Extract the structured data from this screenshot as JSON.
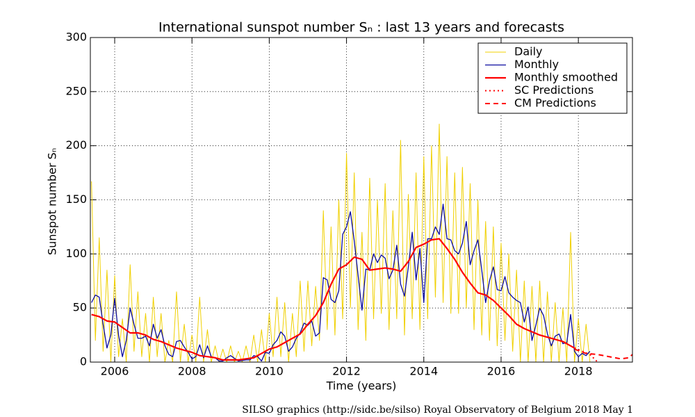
{
  "chart_data": {
    "type": "line",
    "title": "International sunspot number Sₙ : last 13 years and forecasts",
    "x_label": "Time (years)",
    "y_label": "Sunspot number Sₙ",
    "footer": "SILSO graphics (http://sidc.be/silso)  Royal Observatory of Belgium  2018 May 1",
    "xlim": [
      2005.37,
      2019.4
    ],
    "ylim": [
      0,
      300
    ],
    "xticks": [
      2006,
      2008,
      2010,
      2012,
      2014,
      2016,
      2018
    ],
    "yticks": [
      0,
      50,
      100,
      150,
      200,
      250,
      300
    ],
    "grid": true,
    "legend": "upper right",
    "series": [
      {
        "name": "Daily",
        "color": "#f0d000",
        "style": "solid",
        "linewidth": 1,
        "x": [
          2005.4,
          2005.5,
          2005.6,
          2005.7,
          2005.8,
          2005.9,
          2006.0,
          2006.1,
          2006.2,
          2006.3,
          2006.4,
          2006.5,
          2006.6,
          2006.7,
          2006.8,
          2006.9,
          2007.0,
          2007.1,
          2007.2,
          2007.3,
          2007.4,
          2007.5,
          2007.6,
          2007.7,
          2007.8,
          2007.9,
          2008.0,
          2008.1,
          2008.2,
          2008.3,
          2008.4,
          2008.5,
          2008.6,
          2008.7,
          2008.8,
          2008.9,
          2009.0,
          2009.1,
          2009.2,
          2009.3,
          2009.4,
          2009.5,
          2009.6,
          2009.7,
          2009.8,
          2009.9,
          2010.0,
          2010.1,
          2010.2,
          2010.3,
          2010.4,
          2010.5,
          2010.6,
          2010.7,
          2010.8,
          2010.9,
          2011.0,
          2011.1,
          2011.2,
          2011.3,
          2011.4,
          2011.5,
          2011.6,
          2011.7,
          2011.8,
          2011.9,
          2012.0,
          2012.1,
          2012.2,
          2012.3,
          2012.4,
          2012.5,
          2012.6,
          2012.7,
          2012.8,
          2012.9,
          2013.0,
          2013.1,
          2013.2,
          2013.3,
          2013.4,
          2013.5,
          2013.6,
          2013.7,
          2013.8,
          2013.9,
          2014.0,
          2014.1,
          2014.2,
          2014.3,
          2014.4,
          2014.5,
          2014.6,
          2014.7,
          2014.8,
          2014.9,
          2015.0,
          2015.1,
          2015.2,
          2015.3,
          2015.4,
          2015.5,
          2015.6,
          2015.7,
          2015.8,
          2015.9,
          2016.0,
          2016.1,
          2016.2,
          2016.3,
          2016.4,
          2016.5,
          2016.6,
          2016.7,
          2016.8,
          2016.9,
          2017.0,
          2017.1,
          2017.2,
          2017.3,
          2017.4,
          2017.5,
          2017.6,
          2017.7,
          2017.8,
          2017.9,
          2018.0,
          2018.1,
          2018.2,
          2018.3
        ],
        "values": [
          167,
          20,
          115,
          10,
          85,
          0,
          80,
          5,
          40,
          0,
          90,
          10,
          65,
          5,
          45,
          0,
          60,
          5,
          45,
          0,
          20,
          0,
          65,
          0,
          35,
          0,
          25,
          0,
          60,
          0,
          30,
          0,
          15,
          0,
          12,
          0,
          15,
          0,
          10,
          0,
          15,
          0,
          25,
          0,
          30,
          0,
          45,
          5,
          60,
          5,
          55,
          0,
          45,
          5,
          75,
          10,
          75,
          15,
          70,
          20,
          140,
          30,
          125,
          25,
          150,
          40,
          193,
          50,
          175,
          30,
          120,
          20,
          170,
          40,
          150,
          45,
          165,
          30,
          140,
          40,
          205,
          25,
          155,
          40,
          175,
          30,
          190,
          40,
          200,
          60,
          220,
          55,
          190,
          45,
          175,
          45,
          180,
          50,
          165,
          30,
          150,
          25,
          130,
          20,
          125,
          15,
          110,
          20,
          100,
          10,
          85,
          0,
          75,
          0,
          70,
          0,
          75,
          0,
          65,
          0,
          55,
          0,
          50,
          0,
          120,
          0,
          40,
          0,
          35,
          0
        ]
      },
      {
        "name": "Monthly",
        "color": "#0a0aa0",
        "style": "solid",
        "linewidth": 1.3,
        "x": [
          2005.4,
          2005.5,
          2005.6,
          2005.7,
          2005.8,
          2005.9,
          2006.0,
          2006.1,
          2006.2,
          2006.3,
          2006.4,
          2006.5,
          2006.6,
          2006.7,
          2006.8,
          2006.9,
          2007.0,
          2007.1,
          2007.2,
          2007.3,
          2007.4,
          2007.5,
          2007.6,
          2007.7,
          2007.8,
          2007.9,
          2008.0,
          2008.1,
          2008.2,
          2008.3,
          2008.4,
          2008.5,
          2008.6,
          2008.7,
          2008.8,
          2008.9,
          2009.0,
          2009.2,
          2009.4,
          2009.5,
          2009.6,
          2009.7,
          2009.8,
          2009.9,
          2010.0,
          2010.1,
          2010.2,
          2010.3,
          2010.4,
          2010.5,
          2010.6,
          2010.7,
          2010.8,
          2010.9,
          2011.0,
          2011.1,
          2011.2,
          2011.3,
          2011.4,
          2011.5,
          2011.6,
          2011.7,
          2011.8,
          2011.9,
          2012.0,
          2012.1,
          2012.2,
          2012.3,
          2012.4,
          2012.5,
          2012.6,
          2012.7,
          2012.8,
          2012.9,
          2013.0,
          2013.1,
          2013.2,
          2013.3,
          2013.4,
          2013.5,
          2013.6,
          2013.7,
          2013.8,
          2013.9,
          2014.0,
          2014.1,
          2014.2,
          2014.3,
          2014.4,
          2014.5,
          2014.6,
          2014.7,
          2014.8,
          2014.9,
          2015.0,
          2015.1,
          2015.2,
          2015.3,
          2015.4,
          2015.5,
          2015.6,
          2015.7,
          2015.8,
          2015.9,
          2016.0,
          2016.1,
          2016.2,
          2016.3,
          2016.4,
          2016.5,
          2016.6,
          2016.7,
          2016.8,
          2016.9,
          2017.0,
          2017.1,
          2017.2,
          2017.3,
          2017.4,
          2017.5,
          2017.6,
          2017.7,
          2017.8,
          2017.9,
          2018.0,
          2018.1,
          2018.2,
          2018.3
        ],
        "values": [
          55,
          62,
          60,
          35,
          13,
          25,
          59,
          25,
          5,
          20,
          50,
          35,
          22,
          22,
          24,
          15,
          35,
          22,
          30,
          15,
          7,
          5,
          19,
          20,
          14,
          9,
          3,
          5,
          16,
          4,
          15,
          5,
          4,
          1,
          1,
          4,
          6,
          1,
          2,
          2,
          6,
          5,
          1,
          9,
          8,
          16,
          20,
          28,
          24,
          10,
          14,
          22,
          27,
          36,
          34,
          38,
          24,
          27,
          78,
          76,
          58,
          55,
          66,
          118,
          125,
          139,
          112,
          80,
          48,
          86,
          85,
          100,
          92,
          99,
          96,
          77,
          85,
          108,
          72,
          61,
          88,
          120,
          76,
          105,
          55,
          114,
          114,
          125,
          118,
          146,
          114,
          113,
          103,
          100,
          110,
          130,
          90,
          103,
          113,
          85,
          55,
          75,
          88,
          67,
          66,
          79,
          64,
          60,
          57,
          55,
          37,
          51,
          20,
          34,
          50,
          43,
          26,
          15,
          24,
          26,
          17,
          18,
          44,
          10,
          5,
          8,
          6,
          10
        ]
      },
      {
        "name": "Monthly smoothed",
        "color": "#ff0000",
        "style": "solid",
        "linewidth": 2.2,
        "x": [
          2005.4,
          2005.6,
          2005.8,
          2006.0,
          2006.2,
          2006.4,
          2006.6,
          2006.8,
          2007.0,
          2007.2,
          2007.4,
          2007.6,
          2007.8,
          2008.0,
          2008.2,
          2008.4,
          2008.6,
          2008.8,
          2009.0,
          2009.2,
          2009.4,
          2009.6,
          2009.8,
          2010.0,
          2010.2,
          2010.4,
          2010.6,
          2010.8,
          2011.0,
          2011.2,
          2011.4,
          2011.6,
          2011.8,
          2012.0,
          2012.2,
          2012.4,
          2012.6,
          2012.8,
          2013.0,
          2013.2,
          2013.4,
          2013.6,
          2013.8,
          2014.0,
          2014.2,
          2014.4,
          2014.6,
          2014.8,
          2015.0,
          2015.2,
          2015.4,
          2015.6,
          2015.8,
          2016.0,
          2016.2,
          2016.4,
          2016.6,
          2016.8,
          2017.0,
          2017.2,
          2017.4,
          2017.6,
          2017.8,
          2017.9
        ],
        "values": [
          44,
          42,
          38,
          37,
          32,
          27,
          27,
          25,
          21,
          19,
          16,
          13,
          11,
          9,
          6,
          5,
          4,
          2,
          2,
          2,
          3,
          4,
          8,
          12,
          14,
          18,
          22,
          26,
          35,
          43,
          55,
          72,
          86,
          90,
          97,
          95,
          85,
          86,
          87,
          86,
          84,
          93,
          106,
          109,
          113,
          114,
          105,
          95,
          83,
          73,
          64,
          62,
          57,
          50,
          43,
          35,
          31,
          28,
          25,
          23,
          21,
          19,
          15,
          13
        ]
      },
      {
        "name": "SC Predictions",
        "color": "#ff0000",
        "style": "dotted",
        "linewidth": 2,
        "x": [
          2017.9,
          2018.1,
          2018.3,
          2018.5
        ],
        "values": [
          13,
          10,
          7,
          0
        ]
      },
      {
        "name": "CM Predictions",
        "color": "#ff0000",
        "style": "dashed",
        "linewidth": 2,
        "x": [
          2017.9,
          2018.2,
          2018.5,
          2018.8,
          2019.1,
          2019.3,
          2019.4
        ],
        "values": [
          12,
          8,
          7,
          5,
          3,
          4,
          7
        ]
      }
    ]
  }
}
